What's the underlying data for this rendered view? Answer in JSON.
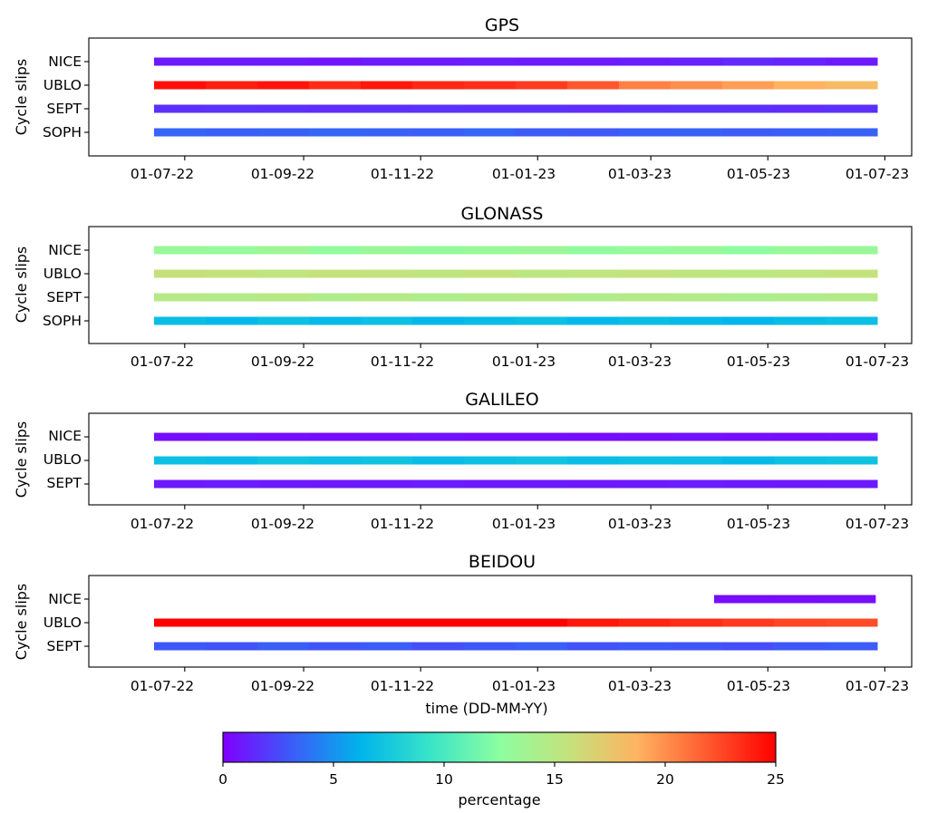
{
  "chart_data": {
    "type": "heatmap",
    "xlabel": "time (DD-MM-YY)",
    "x_ticks": [
      "01-07-22",
      "01-09-22",
      "01-11-22",
      "01-01-23",
      "01-03-23",
      "01-05-23",
      "01-07-23"
    ],
    "x_tick_dates": [
      "2022-07-01",
      "2022-09-01",
      "2022-11-01",
      "2023-01-01",
      "2023-03-01",
      "2023-05-01",
      "2023-07-01"
    ],
    "x_range": [
      "2022-05-12",
      "2023-07-15"
    ],
    "data_start": "2022-06-15",
    "data_end": "2023-06-27",
    "colorbar": {
      "label": "percentage",
      "min": 0,
      "max": 25,
      "ticks": [
        0,
        5,
        10,
        15,
        20,
        25
      ],
      "colormap": "rainbow",
      "colors": [
        "#8000ff",
        "#3b5cf7",
        "#00b5eb",
        "#38e4c8",
        "#8cfea0",
        "#c4e27c",
        "#ffb360",
        "#ff5a2f",
        "#ff0000"
      ]
    },
    "panels": [
      {
        "title": "GPS",
        "ylabel": "Cycle slips",
        "rows": [
          {
            "name": "NICE",
            "start": "2022-06-15",
            "end": "2023-06-27",
            "values": [
              0.8,
              0.9,
              0.8,
              0.7,
              0.8,
              0.9,
              1.0,
              0.9,
              0.8,
              1.0,
              1.1,
              1.4,
              1.2,
              0.9
            ]
          },
          {
            "name": "UBLO",
            "start": "2022-06-15",
            "end": "2023-06-27",
            "values": [
              24.5,
              24.0,
              24.3,
              23.5,
              24.2,
              23.6,
              23.4,
              23.0,
              22.0,
              20.5,
              20.0,
              19.5,
              18.8,
              18.2
            ]
          },
          {
            "name": "SEPT",
            "start": "2022-06-15",
            "end": "2023-06-27",
            "values": [
              1.6,
              1.7,
              1.6,
              1.5,
              1.6,
              1.7,
              1.6,
              1.6,
              1.5,
              1.6,
              1.7,
              1.6,
              1.5,
              1.6
            ]
          },
          {
            "name": "SOPH",
            "start": "2022-06-15",
            "end": "2023-06-27",
            "values": [
              3.4,
              3.2,
              3.3,
              3.5,
              3.3,
              3.2,
              3.4,
              3.1,
              3.0,
              3.2,
              3.3,
              3.1,
              3.2,
              3.3
            ]
          }
        ]
      },
      {
        "title": "GLONASS",
        "ylabel": "Cycle slips",
        "rows": [
          {
            "name": "NICE",
            "start": "2022-06-15",
            "end": "2023-06-27",
            "values": [
              13.2,
              13.0,
              13.5,
              12.8,
              13.3,
              12.9,
              13.1,
              13.4,
              12.7,
              13.0,
              13.2,
              12.6,
              13.1,
              13.3
            ]
          },
          {
            "name": "UBLO",
            "start": "2022-06-15",
            "end": "2023-06-27",
            "values": [
              15.8,
              15.6,
              15.4,
              15.7,
              15.5,
              15.3,
              15.6,
              15.2,
              15.4,
              15.5,
              15.3,
              15.1,
              15.4,
              15.6
            ]
          },
          {
            "name": "SEPT",
            "start": "2022-06-15",
            "end": "2023-06-27",
            "values": [
              14.8,
              14.6,
              14.9,
              14.5,
              14.7,
              14.4,
              14.6,
              14.8,
              14.5,
              14.7,
              14.6,
              14.3,
              14.5,
              14.7
            ]
          },
          {
            "name": "SOPH",
            "start": "2022-06-15",
            "end": "2023-06-27",
            "values": [
              6.8,
              6.5,
              7.0,
              6.6,
              6.9,
              6.4,
              6.7,
              7.0,
              6.5,
              6.8,
              6.6,
              6.3,
              6.7,
              6.9
            ]
          }
        ]
      },
      {
        "title": "GALILEO",
        "ylabel": "Cycle slips",
        "rows": [
          {
            "name": "NICE",
            "start": "2022-06-15",
            "end": "2023-06-27",
            "values": [
              0.5,
              0.6,
              0.5,
              0.4,
              0.5,
              0.6,
              0.5,
              0.5,
              0.4,
              0.5,
              0.6,
              0.5,
              0.4,
              0.5
            ]
          },
          {
            "name": "UBLO",
            "start": "2022-06-15",
            "end": "2023-06-27",
            "values": [
              7.0,
              6.8,
              7.2,
              6.9,
              7.1,
              6.7,
              7.0,
              7.2,
              6.8,
              7.0,
              6.9,
              6.6,
              7.0,
              7.1
            ]
          },
          {
            "name": "SEPT",
            "start": "2022-06-15",
            "end": "2023-06-27",
            "values": [
              0.9,
              1.0,
              0.9,
              0.8,
              0.9,
              1.0,
              0.9,
              0.9,
              0.8,
              0.9,
              1.0,
              0.9,
              0.8,
              0.9
            ]
          }
        ]
      },
      {
        "title": "BEIDOU",
        "ylabel": "Cycle slips",
        "rows": [
          {
            "name": "NICE",
            "start": "2023-04-03",
            "end": "2023-06-26",
            "values": [
              0.4,
              0.4,
              0.5
            ]
          },
          {
            "name": "UBLO",
            "start": "2022-06-15",
            "end": "2023-06-27",
            "values": [
              25.0,
              25.0,
              25.0,
              25.0,
              25.0,
              25.0,
              25.0,
              25.0,
              24.2,
              23.8,
              23.4,
              23.0,
              22.6,
              22.4
            ]
          },
          {
            "name": "SEPT",
            "start": "2022-06-15",
            "end": "2023-06-27",
            "values": [
              3.0,
              2.8,
              3.2,
              2.9,
              3.1,
              2.7,
              3.0,
              3.2,
              2.8,
              3.0,
              2.9,
              2.6,
              3.0,
              3.1
            ]
          }
        ]
      }
    ]
  }
}
